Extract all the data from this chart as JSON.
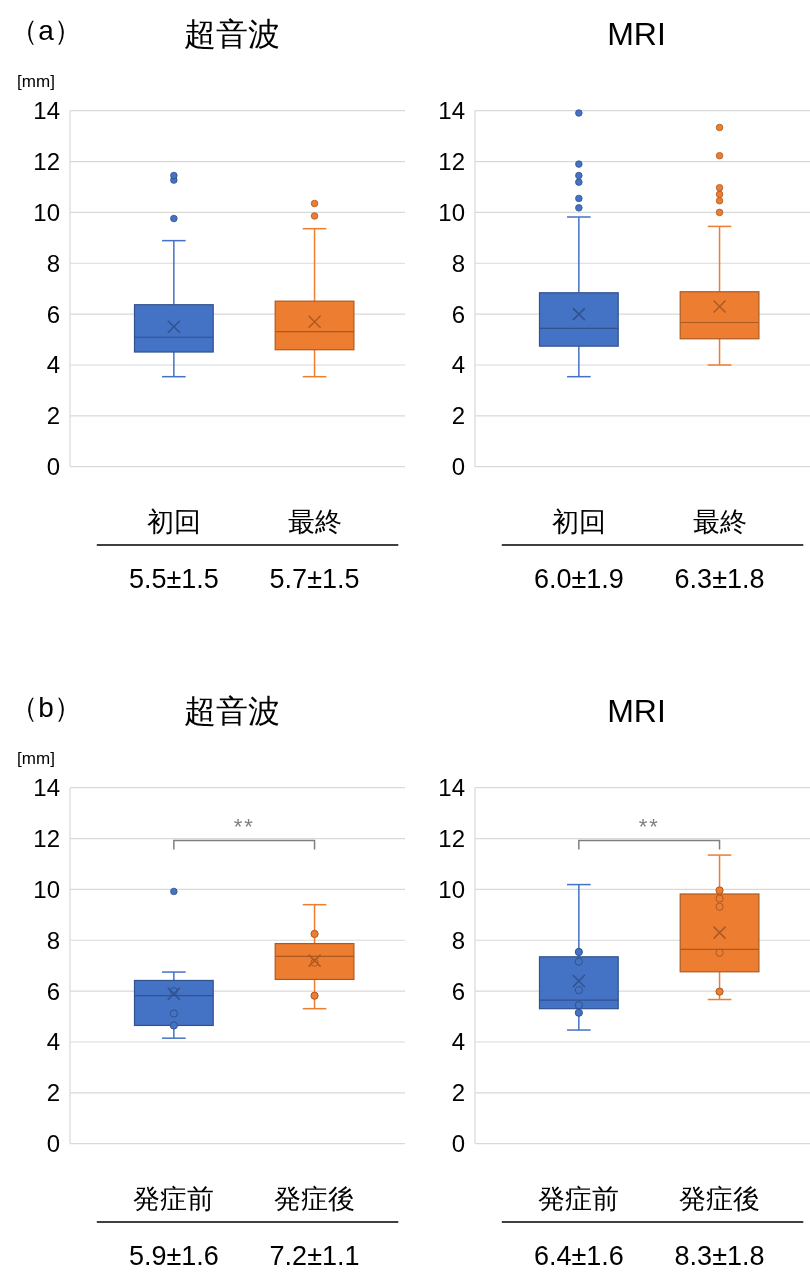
{
  "chart_data": [
    {
      "type": "other",
      "title": "（a）"
    },
    {
      "type": "box",
      "title": "超音波",
      "ylabel": "[mm]",
      "categories": [
        "初回",
        "最終"
      ],
      "colors": [
        "#4472c4",
        "#ed7d31"
      ],
      "boxes": [
        {
          "low": 3.54,
          "q1": 4.51,
          "median": 5.09,
          "q3": 6.37,
          "high": 8.89,
          "mean": 5.5,
          "outliers": [
            9.76,
            11.27,
            11.45
          ]
        },
        {
          "low": 3.54,
          "q1": 4.6,
          "median": 5.31,
          "q3": 6.51,
          "high": 9.36,
          "mean": 5.7,
          "outliers": [
            9.86,
            10.35
          ]
        }
      ],
      "ylim": [
        0,
        14
      ],
      "yticks": [
        0,
        2,
        4,
        6,
        8,
        10,
        12,
        14
      ],
      "grid": "y",
      "annotations": [
        "5.5±1.5",
        "5.7±1.5"
      ]
    },
    {
      "type": "box",
      "title": "MRI",
      "categories": [
        "初回",
        "最終"
      ],
      "colors": [
        "#4472c4",
        "#ed7d31"
      ],
      "boxes": [
        {
          "low": 3.54,
          "q1": 4.74,
          "median": 5.44,
          "q3": 6.84,
          "high": 9.82,
          "mean": 6.0,
          "outliers": [
            10.18,
            10.55,
            11.19,
            11.45,
            11.9,
            13.91
          ]
        },
        {
          "low": 4.0,
          "q1": 5.03,
          "median": 5.67,
          "q3": 6.88,
          "high": 9.45,
          "mean": 6.3,
          "outliers": [
            10.0,
            10.46,
            10.71,
            10.97,
            12.23,
            13.34
          ]
        }
      ],
      "ylim": [
        0,
        14
      ],
      "yticks": [
        0,
        2,
        4,
        6,
        8,
        10,
        12,
        14
      ],
      "grid": "y",
      "annotations": [
        "6.0±1.9",
        "6.3±1.8"
      ]
    },
    {
      "type": "other",
      "title": "（b）"
    },
    {
      "type": "box",
      "title": "超音波",
      "ylabel": "[mm]",
      "categories": [
        "発症前",
        "発症後"
      ],
      "colors": [
        "#4472c4",
        "#ed7d31"
      ],
      "boxes": [
        {
          "low": 4.15,
          "q1": 4.65,
          "median": 5.82,
          "q3": 6.42,
          "high": 6.75,
          "mean": 5.9,
          "outliers": [
            9.92
          ]
        },
        {
          "low": 5.31,
          "q1": 6.46,
          "median": 7.37,
          "q3": 7.87,
          "high": 9.4,
          "mean": 7.2
        }
      ],
      "series": [
        {
          "type": "scatter",
          "color": "#4472c4",
          "x": [
            "発症前",
            "発症前",
            "発症前"
          ],
          "values": [
            6.0,
            5.12,
            4.65
          ]
        },
        {
          "type": "scatter",
          "color": "#ed7d31",
          "x": [
            "発症後",
            "発症後",
            "発症後"
          ],
          "values": [
            8.25,
            7.12,
            5.82
          ]
        }
      ],
      "marker": "circle",
      "ylim": [
        0,
        14
      ],
      "yticks": [
        0,
        2,
        4,
        6,
        8,
        10,
        12,
        14
      ],
      "grid": "y",
      "annotations": [
        "**",
        "5.9±1.6",
        "7.2±1.1"
      ]
    },
    {
      "type": "box",
      "title": "MRI",
      "categories": [
        "発症前",
        "発症後"
      ],
      "colors": [
        "#4472c4",
        "#ed7d31"
      ],
      "boxes": [
        {
          "low": 4.47,
          "q1": 5.31,
          "median": 5.65,
          "q3": 7.35,
          "high": 10.19,
          "mean": 6.4
        },
        {
          "low": 5.67,
          "q1": 6.76,
          "median": 7.64,
          "q3": 9.82,
          "high": 11.35,
          "mean": 8.3
        }
      ],
      "series": [
        {
          "type": "scatter",
          "color": "#4472c4",
          "x": [
            "発症前",
            "発症前",
            "発症前",
            "発症前",
            "発症前"
          ],
          "values": [
            7.54,
            7.16,
            6.04,
            5.45,
            5.15
          ]
        },
        {
          "type": "scatter",
          "color": "#ed7d31",
          "x": [
            "発症後",
            "発症後",
            "発症後",
            "発症後",
            "発症後"
          ],
          "values": [
            9.96,
            9.64,
            9.32,
            7.51,
            5.98
          ]
        }
      ],
      "marker": "circle",
      "ylim": [
        0,
        14
      ],
      "yticks": [
        0,
        2,
        4,
        6,
        8,
        10,
        12,
        14
      ],
      "grid": "y",
      "annotations": [
        "**",
        "6.4±1.6",
        "8.3±1.8"
      ]
    }
  ]
}
